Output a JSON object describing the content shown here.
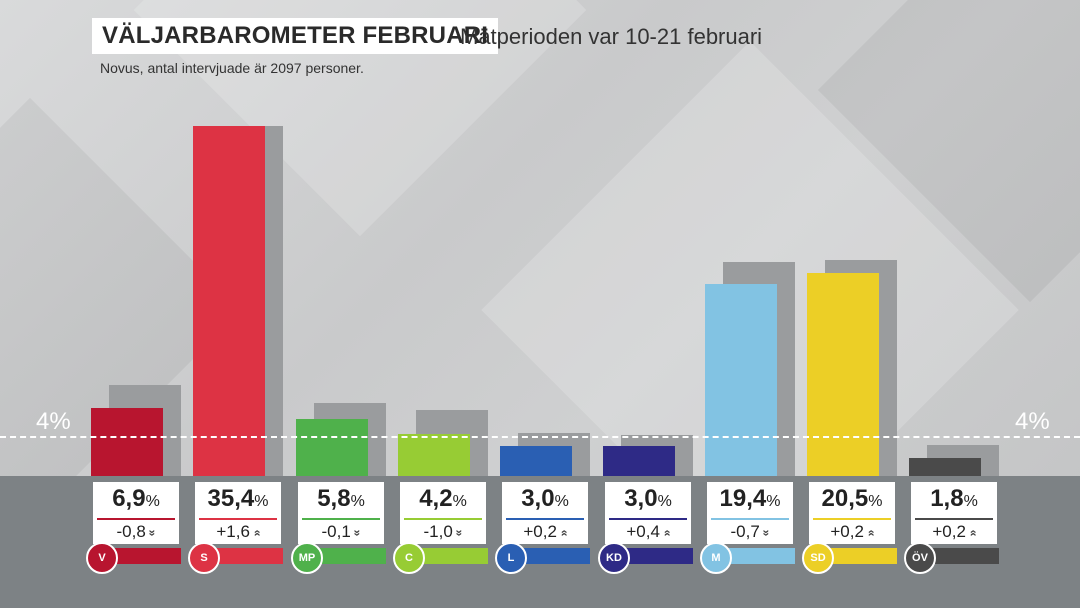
{
  "header": {
    "title": "VÄLJARBAROMETER FEBRUARI",
    "subtitle": "Mätperioden var 10-21 februari",
    "source": "Novus, antal intervjuade är 2097 personer."
  },
  "threshold_label": "4%",
  "percent_sign": "%",
  "chart_data": {
    "type": "bar",
    "categories": [
      "V",
      "S",
      "MP",
      "C",
      "L",
      "KD",
      "M",
      "SD",
      "ÖV"
    ],
    "values": [
      6.9,
      35.4,
      5.8,
      4.2,
      3.0,
      3.0,
      19.4,
      20.5,
      1.8
    ],
    "previous_values": [
      7.7,
      33.8,
      5.9,
      5.2,
      2.8,
      2.6,
      20.1,
      20.3,
      1.6
    ],
    "value_labels": [
      "6,9",
      "35,4",
      "5,8",
      "4,2",
      "3,0",
      "3,0",
      "19,4",
      "20,5",
      "1,8"
    ],
    "change_labels": [
      "-0,8",
      "+1,6",
      "-0,1",
      "-1,0",
      "+0,2",
      "+0,4",
      "-0,7",
      "+0,2",
      "+0,2"
    ],
    "change_directions": [
      "down",
      "up",
      "down",
      "down",
      "up",
      "up",
      "down",
      "up",
      "up"
    ],
    "colors": [
      "#b8152f",
      "#dd3344",
      "#4fb14b",
      "#97cc34",
      "#2a5fb3",
      "#2e2a86",
      "#82c3e3",
      "#eccf26",
      "#4a4a4a"
    ],
    "threshold": 4,
    "ylim": [
      0,
      36
    ],
    "title": "",
    "xlabel": "",
    "ylabel": ""
  }
}
